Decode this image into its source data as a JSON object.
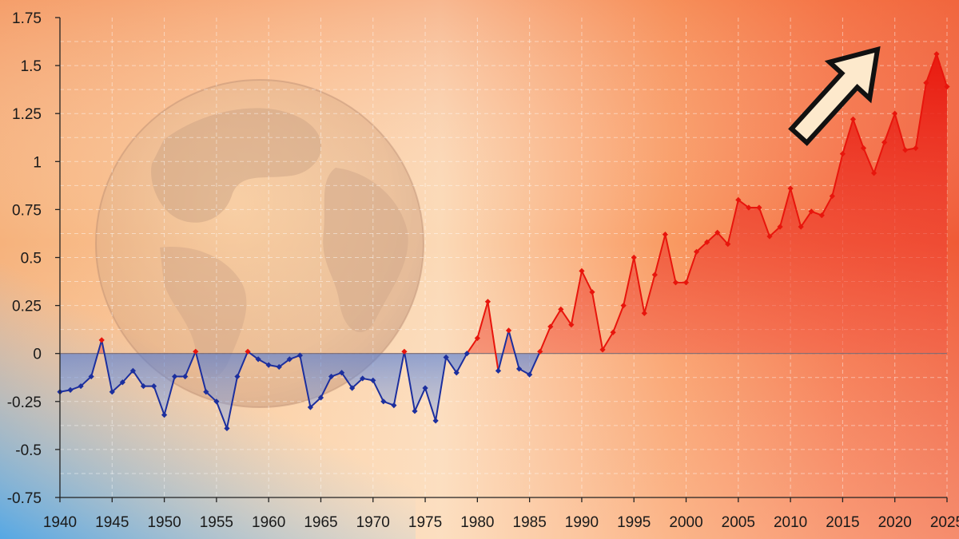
{
  "chart_data": {
    "type": "area",
    "title": "",
    "xlabel": "",
    "ylabel": "",
    "xlim": [
      1940,
      2025
    ],
    "ylim": [
      -0.75,
      1.75
    ],
    "grid": true,
    "x_ticks": [
      "1940",
      "1945",
      "1950",
      "1955",
      "1960",
      "1965",
      "1970",
      "1975",
      "1980",
      "1985",
      "1990",
      "1995",
      "2000",
      "2005",
      "2010",
      "2015",
      "2020",
      "2025"
    ],
    "y_ticks": [
      "1.75",
      "1.5",
      "1.25",
      "1",
      "0.75",
      "0.5",
      "0.25",
      "0",
      "-0.25",
      "-0.5",
      "-0.75"
    ],
    "x": [
      1940,
      1941,
      1942,
      1943,
      1944,
      1945,
      1946,
      1947,
      1948,
      1949,
      1950,
      1951,
      1952,
      1953,
      1954,
      1955,
      1956,
      1957,
      1958,
      1959,
      1960,
      1961,
      1962,
      1963,
      1964,
      1965,
      1966,
      1967,
      1968,
      1969,
      1970,
      1971,
      1972,
      1973,
      1974,
      1975,
      1976,
      1977,
      1978,
      1979,
      1980,
      1981,
      1982,
      1983,
      1984,
      1985,
      1986,
      1987,
      1988,
      1989,
      1990,
      1991,
      1992,
      1993,
      1994,
      1995,
      1996,
      1997,
      1998,
      1999,
      2000,
      2001,
      2002,
      2003,
      2004,
      2005,
      2006,
      2007,
      2008,
      2009,
      2010,
      2011,
      2012,
      2013,
      2014,
      2015,
      2016,
      2017,
      2018,
      2019,
      2020,
      2021,
      2022,
      2023,
      2024,
      2025
    ],
    "values": [
      -0.2,
      -0.19,
      -0.17,
      -0.12,
      0.07,
      -0.2,
      -0.15,
      -0.09,
      -0.17,
      -0.17,
      -0.32,
      -0.12,
      -0.12,
      0.01,
      -0.2,
      -0.25,
      -0.39,
      -0.12,
      0.01,
      -0.03,
      -0.06,
      -0.07,
      -0.03,
      -0.01,
      -0.28,
      -0.23,
      -0.12,
      -0.1,
      -0.18,
      -0.13,
      -0.14,
      -0.25,
      -0.27,
      0.01,
      -0.3,
      -0.18,
      -0.35,
      -0.02,
      -0.1,
      0.0,
      0.08,
      0.27,
      -0.09,
      0.12,
      -0.08,
      -0.11,
      0.01,
      0.14,
      0.23,
      0.15,
      0.43,
      0.32,
      0.02,
      0.11,
      0.25,
      0.5,
      0.21,
      0.41,
      0.62,
      0.37,
      0.37,
      0.53,
      0.58,
      0.63,
      0.57,
      0.8,
      0.76,
      0.76,
      0.61,
      0.66,
      0.86,
      0.66,
      0.74,
      0.72,
      0.82,
      1.04,
      1.22,
      1.07,
      0.94,
      1.1,
      1.25,
      1.06,
      1.07,
      1.41,
      1.56,
      1.39
    ],
    "colors": {
      "positive": "#e8150c",
      "negative": "#1c2f9e",
      "negative_fill": "#4a78d8"
    },
    "annotations": [
      {
        "type": "arrow",
        "direction": "up-right",
        "color": "#fde9cc"
      }
    ]
  }
}
